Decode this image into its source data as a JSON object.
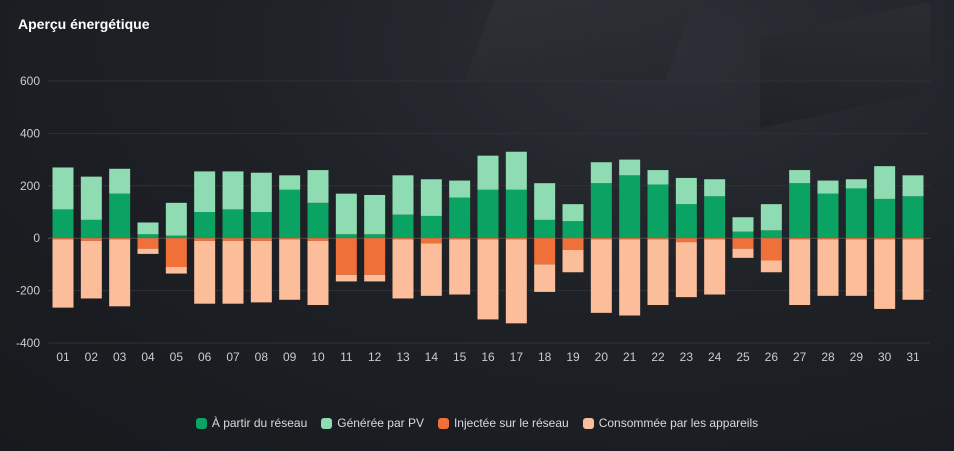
{
  "title": "Aperçu énergétique",
  "colors": {
    "grid_import": "#0aa363",
    "pv_generated": "#8fdcb2",
    "grid_export": "#f07039",
    "consumed": "#fbbd9a"
  },
  "chart_data": {
    "type": "bar",
    "title": "Aperçu énergétique",
    "xlabel": "",
    "ylabel": "",
    "ylim": [
      -400,
      700
    ],
    "yticks": [
      600,
      400,
      200,
      0,
      -200,
      -400
    ],
    "categories": [
      "01",
      "02",
      "03",
      "04",
      "05",
      "06",
      "07",
      "08",
      "09",
      "10",
      "11",
      "12",
      "13",
      "14",
      "15",
      "16",
      "17",
      "18",
      "19",
      "20",
      "21",
      "22",
      "23",
      "24",
      "25",
      "26",
      "27",
      "28",
      "29",
      "30",
      "31"
    ],
    "series": [
      {
        "name": "À partir du réseau",
        "stack": "positive",
        "values": [
          110,
          70,
          170,
          15,
          10,
          100,
          110,
          100,
          185,
          135,
          15,
          15,
          90,
          85,
          155,
          185,
          185,
          70,
          65,
          210,
          240,
          205,
          130,
          160,
          25,
          30,
          210,
          170,
          190,
          150,
          160
        ]
      },
      {
        "name": "Générée par PV",
        "stack": "positive",
        "values": [
          160,
          165,
          95,
          45,
          125,
          155,
          145,
          150,
          55,
          125,
          155,
          150,
          150,
          140,
          65,
          130,
          145,
          140,
          65,
          80,
          60,
          55,
          100,
          65,
          55,
          100,
          50,
          50,
          35,
          125,
          80
        ]
      },
      {
        "name": "Injectée sur le réseau",
        "stack": "negative",
        "values": [
          -5,
          -10,
          -5,
          -40,
          -110,
          -10,
          -10,
          -10,
          -5,
          -10,
          -140,
          -140,
          -5,
          -20,
          -5,
          -5,
          -5,
          -100,
          -45,
          -5,
          -5,
          -5,
          -15,
          -5,
          -40,
          -85,
          -5,
          -5,
          -5,
          -5,
          -5
        ]
      },
      {
        "name": "Consommée par les appareils",
        "stack": "negative",
        "values": [
          -260,
          -220,
          -255,
          -20,
          -25,
          -240,
          -240,
          -235,
          -230,
          -245,
          -25,
          -25,
          -225,
          -200,
          -210,
          -305,
          -320,
          -105,
          -85,
          -280,
          -290,
          -250,
          -210,
          -210,
          -35,
          -45,
          -250,
          -215,
          -215,
          -265,
          -230
        ]
      }
    ]
  }
}
